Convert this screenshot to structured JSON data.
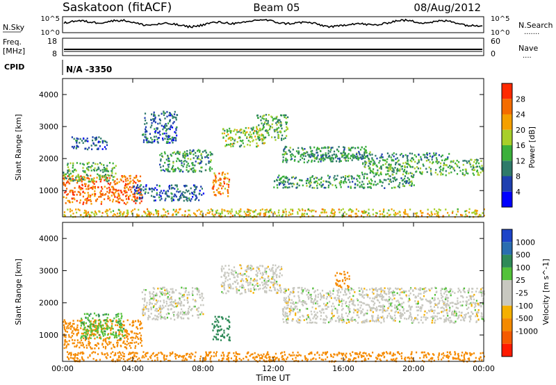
{
  "header": {
    "station": "Saskatoon (fitACF)",
    "beam": "Beam 05",
    "date": "08/Aug/2012"
  },
  "noise_panel": {
    "left_label": "N.Sky",
    "left_ticks": [
      "10^5",
      "10^0"
    ],
    "right_ticks": [
      "10^5",
      "10^0"
    ],
    "right_label": "N.Search",
    "right_label_dots": "......."
  },
  "freq_panel": {
    "label_top": "Freq.",
    "label_unit": "[MHz]",
    "left_ticks": [
      "18",
      "8"
    ],
    "right_ticks": [
      "60",
      "0"
    ],
    "right_label": "Nave",
    "right_label_dots": "...."
  },
  "cpid_panel": {
    "label": "CPID",
    "value": "N/A -3350"
  },
  "colors": {
    "power_scale": [
      "#0000ff",
      "#1e3fb0",
      "#2f7a6a",
      "#3bb03b",
      "#a8cf2a",
      "#f5a000",
      "#f56c00",
      "#ff2a00"
    ],
    "velocity_scale": [
      "#1d44c8",
      "#2a6eb0",
      "#2f8a58",
      "#53c23a",
      "#c8c8c0",
      "#c8c8c0",
      "#f5b000",
      "#f58a00",
      "#f55a00",
      "#ff1a00"
    ]
  },
  "chart_data": [
    {
      "type": "heatmap",
      "title": "",
      "quantity": "Power",
      "xlabel": "",
      "ylabel": "Slant Range [km]",
      "x_range_hours": [
        0,
        24
      ],
      "y_range_km": [
        180,
        4500
      ],
      "y_ticks": [
        "1000",
        "2000",
        "3000",
        "4000"
      ],
      "colorbar": {
        "label": "Power [dB]",
        "ticks": [
          "4",
          "8",
          "12",
          "16",
          "20",
          "24",
          "28"
        ],
        "range": [
          0,
          32
        ]
      },
      "scatter_regions": [
        {
          "t0": 0.0,
          "t1": 4.5,
          "r0": 600,
          "r1": 1500,
          "value_db": 26
        },
        {
          "t0": 0.0,
          "t1": 3.0,
          "r0": 1300,
          "r1": 1900,
          "value_db": 14
        },
        {
          "t0": 0.5,
          "t1": 2.5,
          "r0": 2300,
          "r1": 2700,
          "value_db": 8
        },
        {
          "t0": 4.0,
          "t1": 8.0,
          "r0": 700,
          "r1": 1200,
          "value_db": 8
        },
        {
          "t0": 4.5,
          "t1": 6.5,
          "r0": 2500,
          "r1": 3500,
          "value_db": 8
        },
        {
          "t0": 5.5,
          "t1": 8.5,
          "r0": 1600,
          "r1": 2300,
          "value_db": 12
        },
        {
          "t0": 8.5,
          "t1": 9.5,
          "r0": 850,
          "r1": 1600,
          "value_db": 24
        },
        {
          "t0": 9.0,
          "t1": 11.5,
          "r0": 2400,
          "r1": 3000,
          "value_db": 16
        },
        {
          "t0": 11.0,
          "t1": 12.8,
          "r0": 2600,
          "r1": 3400,
          "value_db": 14
        },
        {
          "t0": 12.5,
          "t1": 17.5,
          "r0": 1900,
          "r1": 2400,
          "value_db": 12
        },
        {
          "t0": 14.0,
          "t1": 22.0,
          "r0": 2000,
          "r1": 2200,
          "value_db": 10
        },
        {
          "t0": 12.0,
          "t1": 20.0,
          "r0": 1100,
          "r1": 1500,
          "value_db": 12
        },
        {
          "t0": 17.0,
          "t1": 24.0,
          "r0": 1500,
          "r1": 2000,
          "value_db": 14
        },
        {
          "t0": 0.0,
          "t1": 24.0,
          "r0": 200,
          "r1": 450,
          "value_db": 20
        }
      ]
    },
    {
      "type": "heatmap",
      "title": "",
      "quantity": "Velocity",
      "xlabel": "Time UT",
      "ylabel": "Slant Range [km]",
      "x_range_hours": [
        0,
        24
      ],
      "x_ticks": [
        "00:00",
        "04:00",
        "08:00",
        "12:00",
        "16:00",
        "20:00",
        "00:00"
      ],
      "y_range_km": [
        180,
        4500
      ],
      "y_ticks": [
        "1000",
        "2000",
        "3000",
        "4000"
      ],
      "colorbar": {
        "label": "Velocity [m s^-1]",
        "ticks": [
          "1000",
          "500",
          "100",
          "25",
          "-25",
          "-100",
          "-500",
          "-1000"
        ]
      },
      "scatter_regions": [
        {
          "t0": 0.0,
          "t1": 4.5,
          "r0": 600,
          "r1": 1500,
          "value_ms": -300
        },
        {
          "t0": 1.0,
          "t1": 3.5,
          "r0": 900,
          "r1": 1700,
          "value_ms": 80
        },
        {
          "t0": 4.5,
          "t1": 8.0,
          "r0": 1500,
          "r1": 2500,
          "value_ms": 0
        },
        {
          "t0": 8.5,
          "t1": 9.5,
          "r0": 850,
          "r1": 1600,
          "value_ms": 150
        },
        {
          "t0": 9.0,
          "t1": 12.5,
          "r0": 2300,
          "r1": 3200,
          "value_ms": 0
        },
        {
          "t0": 12.5,
          "t1": 24.0,
          "r0": 1400,
          "r1": 2500,
          "value_ms": 0
        },
        {
          "t0": 15.5,
          "t1": 16.3,
          "r0": 2500,
          "r1": 3000,
          "value_ms": -400
        },
        {
          "t0": 0.0,
          "t1": 24.0,
          "r0": 200,
          "r1": 500,
          "value_ms": -150
        }
      ]
    }
  ]
}
